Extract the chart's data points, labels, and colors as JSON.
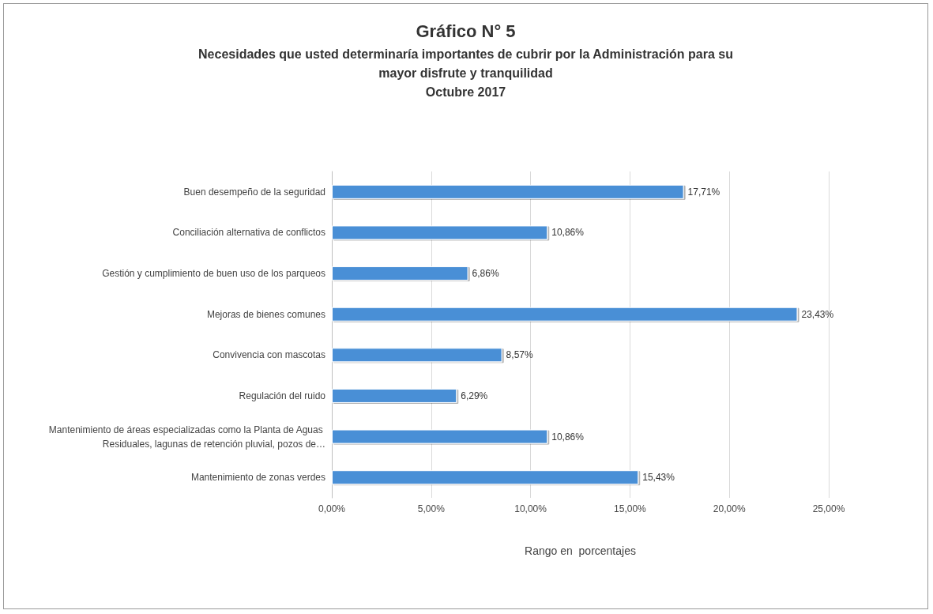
{
  "chart_data": {
    "type": "bar",
    "orientation": "horizontal",
    "title": "Gráfico N° 5",
    "subtitle": "Necesidades que usted determinaría importantes de cubrir por la Administración para su\nmayor disfrute y tranquilidad\nOctubre 2017",
    "xlabel": "Rango en  porcentajes",
    "categories": [
      "Buen desempeño de la seguridad",
      "Conciliación alternativa de conflictos",
      "Gestión y cumplimiento de buen uso de los parqueos",
      "Mejoras de bienes comunes",
      "Convivencia con mascotas",
      "Regulación del ruido",
      "Mantenimiento de áreas especializadas como la Planta de Aguas Residuales, lagunas de retención pluvial, pozos de…",
      "Mantenimiento de zonas verdes"
    ],
    "values": [
      17.71,
      10.86,
      6.86,
      23.43,
      8.57,
      6.29,
      10.86,
      15.43
    ],
    "value_labels": [
      "17,71%",
      "10,86%",
      "6,86%",
      "23,43%",
      "8,57%",
      "6,29%",
      "10,86%",
      "15,43%"
    ],
    "color": "#4a8fd6",
    "xlim": [
      0,
      25
    ],
    "xticks": [
      {
        "value": 0,
        "label": "0,00%"
      },
      {
        "value": 5,
        "label": "5,00%"
      },
      {
        "value": 10,
        "label": "10,00%"
      },
      {
        "value": 15,
        "label": "15,00%"
      },
      {
        "value": 20,
        "label": "20,00%"
      },
      {
        "value": 25,
        "label": "25,00%"
      }
    ],
    "grid": "x"
  }
}
